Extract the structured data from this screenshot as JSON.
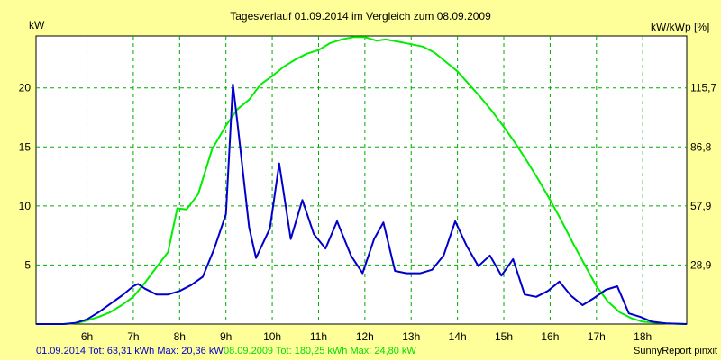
{
  "chart_data": {
    "type": "line",
    "title": "Tagesverlauf 01.09.2014 im Vergleich zum 08.09.2009",
    "ylabel_left": "kW",
    "ylabel_right": "kW/kWp [%]",
    "xlim": [
      4.9,
      18.95
    ],
    "ylim": [
      0,
      24.4
    ],
    "grid": true,
    "x_ticks": [
      {
        "x": 6,
        "label": "6h"
      },
      {
        "x": 7,
        "label": "7h"
      },
      {
        "x": 8,
        "label": "8h"
      },
      {
        "x": 9,
        "label": "9h"
      },
      {
        "x": 10,
        "label": "10h"
      },
      {
        "x": 11,
        "label": "11h"
      },
      {
        "x": 12,
        "label": "12h"
      },
      {
        "x": 13,
        "label": "13h"
      },
      {
        "x": 14,
        "label": "14h"
      },
      {
        "x": 15,
        "label": "15h"
      },
      {
        "x": 16,
        "label": "16h"
      },
      {
        "x": 17,
        "label": "17h"
      },
      {
        "x": 18,
        "label": "18h"
      }
    ],
    "y_ticks_left": [
      {
        "y": 5,
        "label": "5"
      },
      {
        "y": 10,
        "label": "10"
      },
      {
        "y": 15,
        "label": "15"
      },
      {
        "y": 20,
        "label": "20"
      }
    ],
    "y_ticks_right": [
      {
        "y": 5,
        "label": "28,9"
      },
      {
        "y": 10,
        "label": "57,9"
      },
      {
        "y": 15,
        "label": "86,8"
      },
      {
        "y": 20,
        "label": "115,7"
      }
    ],
    "series": [
      {
        "color": "#0000cc",
        "points": [
          [
            4.9,
            0.0
          ],
          [
            5.5,
            0.0
          ],
          [
            5.75,
            0.1
          ],
          [
            6.0,
            0.4
          ],
          [
            6.25,
            1.0
          ],
          [
            6.5,
            1.7
          ],
          [
            6.75,
            2.4
          ],
          [
            7.0,
            3.2
          ],
          [
            7.1,
            3.4
          ],
          [
            7.25,
            3.0
          ],
          [
            7.5,
            2.5
          ],
          [
            7.75,
            2.5
          ],
          [
            8.0,
            2.8
          ],
          [
            8.25,
            3.3
          ],
          [
            8.5,
            4.0
          ],
          [
            8.75,
            6.4
          ],
          [
            9.0,
            9.3
          ],
          [
            9.15,
            20.3
          ],
          [
            9.25,
            17.0
          ],
          [
            9.5,
            8.2
          ],
          [
            9.65,
            5.6
          ],
          [
            9.95,
            8.1
          ],
          [
            10.15,
            13.6
          ],
          [
            10.4,
            7.2
          ],
          [
            10.65,
            10.5
          ],
          [
            10.9,
            7.6
          ],
          [
            11.15,
            6.4
          ],
          [
            11.4,
            8.7
          ],
          [
            11.7,
            5.8
          ],
          [
            11.95,
            4.3
          ],
          [
            12.2,
            7.2
          ],
          [
            12.4,
            8.6
          ],
          [
            12.65,
            4.5
          ],
          [
            12.9,
            4.3
          ],
          [
            13.2,
            4.3
          ],
          [
            13.45,
            4.6
          ],
          [
            13.7,
            5.8
          ],
          [
            13.95,
            8.7
          ],
          [
            14.2,
            6.6
          ],
          [
            14.45,
            4.9
          ],
          [
            14.7,
            5.8
          ],
          [
            14.95,
            4.1
          ],
          [
            15.2,
            5.5
          ],
          [
            15.45,
            2.5
          ],
          [
            15.7,
            2.3
          ],
          [
            15.95,
            2.8
          ],
          [
            16.2,
            3.6
          ],
          [
            16.45,
            2.4
          ],
          [
            16.7,
            1.6
          ],
          [
            16.95,
            2.2
          ],
          [
            17.2,
            2.9
          ],
          [
            17.45,
            3.2
          ],
          [
            17.7,
            0.9
          ],
          [
            17.95,
            0.6
          ],
          [
            18.2,
            0.2
          ],
          [
            18.5,
            0.05
          ],
          [
            18.95,
            0.0
          ]
        ]
      },
      {
        "color": "#00ee00",
        "points": [
          [
            4.9,
            0.0
          ],
          [
            5.5,
            0.0
          ],
          [
            5.8,
            0.1
          ],
          [
            6.0,
            0.3
          ],
          [
            6.25,
            0.6
          ],
          [
            6.5,
            1.0
          ],
          [
            6.75,
            1.6
          ],
          [
            7.0,
            2.3
          ],
          [
            7.25,
            3.5
          ],
          [
            7.5,
            4.8
          ],
          [
            7.75,
            6.1
          ],
          [
            7.95,
            9.8
          ],
          [
            8.15,
            9.7
          ],
          [
            8.4,
            11.0
          ],
          [
            8.7,
            14.8
          ],
          [
            9.0,
            16.8
          ],
          [
            9.25,
            18.2
          ],
          [
            9.5,
            19.0
          ],
          [
            9.75,
            20.3
          ],
          [
            10.0,
            21.0
          ],
          [
            10.25,
            21.8
          ],
          [
            10.5,
            22.4
          ],
          [
            10.75,
            22.9
          ],
          [
            11.0,
            23.2
          ],
          [
            11.25,
            23.8
          ],
          [
            11.5,
            24.1
          ],
          [
            11.75,
            24.3
          ],
          [
            12.0,
            24.3
          ],
          [
            12.25,
            24.0
          ],
          [
            12.45,
            24.1
          ],
          [
            12.75,
            23.9
          ],
          [
            13.0,
            23.7
          ],
          [
            13.25,
            23.5
          ],
          [
            13.5,
            23.0
          ],
          [
            13.75,
            22.2
          ],
          [
            14.0,
            21.4
          ],
          [
            14.25,
            20.3
          ],
          [
            14.5,
            19.2
          ],
          [
            14.75,
            18.0
          ],
          [
            15.0,
            16.7
          ],
          [
            15.25,
            15.3
          ],
          [
            15.5,
            13.8
          ],
          [
            15.75,
            12.2
          ],
          [
            16.0,
            10.5
          ],
          [
            16.25,
            8.7
          ],
          [
            16.5,
            6.8
          ],
          [
            16.75,
            5.0
          ],
          [
            17.0,
            3.2
          ],
          [
            17.25,
            1.9
          ],
          [
            17.5,
            1.0
          ],
          [
            17.75,
            0.5
          ],
          [
            18.0,
            0.2
          ],
          [
            18.5,
            0.05
          ],
          [
            18.95,
            0.0
          ]
        ]
      }
    ],
    "footer": {
      "series1_text": "01.09.2014 Tot: 63,31 kWh Max: 20,36 kW",
      "series1_color": "#0000cc",
      "series2_text": "08.09.2009 Tot: 180,25 kWh Max: 24,80 kW",
      "series2_color": "#00dd00",
      "credit": "SunnyReport pinxit"
    },
    "colors": {
      "background": "#ffff99",
      "plot_area": "#ffffff",
      "grid": "#00aa00"
    }
  }
}
